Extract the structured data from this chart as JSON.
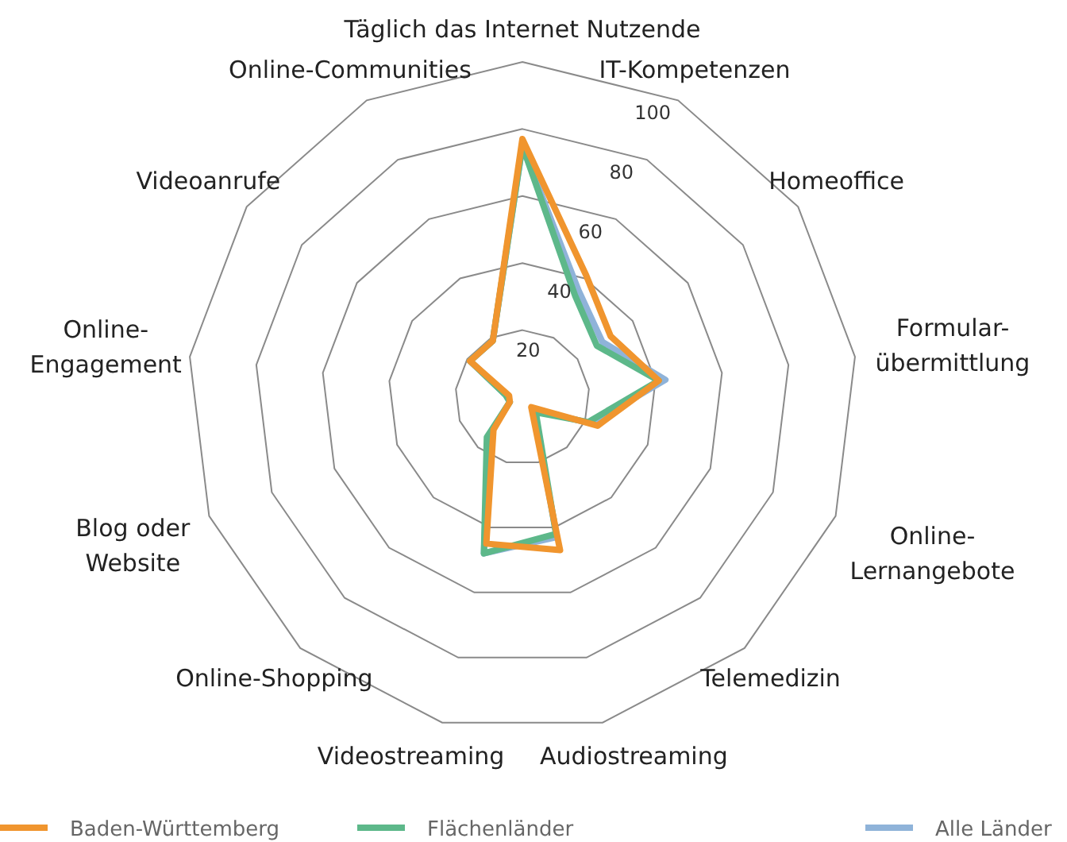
{
  "chart_data": {
    "type": "radar",
    "categories": [
      "Täglich das Internet Nutzende",
      "IT-Kompetenzen",
      "Homeoffice",
      "Formular-\nübermittlung",
      "Online-\nLernangebote",
      "Telemedizin",
      "Audiostreaming",
      "Videostreaming",
      "Online-Shopping",
      "Blog oder\nWebsite",
      "Online-\nEngagement",
      "Videoanrufe",
      "Online-Communities"
    ],
    "series": [
      {
        "name": "Baden-Württemberg",
        "color": "#f0952e",
        "values": [
          77,
          41,
          32,
          41,
          24,
          4,
          47,
          45,
          13,
          4,
          4,
          19,
          19
        ]
      },
      {
        "name": "Flächenländer",
        "color": "#5db88a",
        "values": [
          75,
          34,
          27,
          41,
          21,
          6,
          42,
          48,
          16,
          4,
          5,
          19,
          19
        ]
      },
      {
        "name": "Alle Länder",
        "color": "#8fb3d9",
        "values": [
          75,
          36,
          29,
          43,
          22,
          5,
          43,
          48,
          15,
          4,
          5,
          19,
          19
        ]
      }
    ],
    "ylim": [
      0,
      100
    ],
    "yticks": [
      20,
      40,
      60,
      80,
      100
    ],
    "grid": true,
    "legend": "bottom",
    "marker": "none",
    "line_style": "solid"
  }
}
